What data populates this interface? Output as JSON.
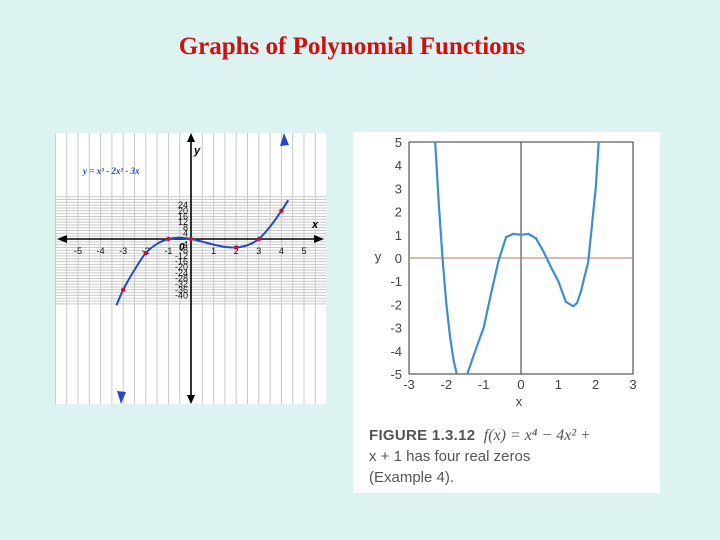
{
  "slide": {
    "title": "Graphs of Polynomial Functions"
  },
  "colors": {
    "title": "#d10f0f",
    "background": "#dcf3f1",
    "left_curve": "#2448c8",
    "left_points": "#c8102e",
    "right_curve": "#3d8fca"
  },
  "chart_data": [
    {
      "type": "line",
      "function_label": "y = x³ - 2x² - 3x",
      "xlabel": "x",
      "ylabel": "y",
      "origin_label": "0",
      "xlim": [
        -5,
        5
      ],
      "ylim": [
        -40,
        24
      ],
      "x_ticks": [
        -5,
        -4,
        -3,
        -2,
        -1,
        1,
        2,
        3,
        4,
        5
      ],
      "y_ticks": [
        24,
        20,
        16,
        12,
        8,
        4,
        -4,
        -8,
        -12,
        -16,
        -20,
        -24,
        -28,
        -32,
        -36,
        -40
      ],
      "x_tick_labels": [
        "-5",
        "-4",
        "-3",
        "-2",
        "-1",
        "1",
        "2",
        "3",
        "4",
        "5"
      ],
      "y_tick_labels": [
        "24",
        "20",
        "16",
        "12",
        "8",
        "4",
        "-4",
        "-8",
        "-12",
        "-16",
        "-20",
        "-24",
        "-28",
        "-32",
        "-36",
        "-40"
      ],
      "grid": true,
      "series": [
        {
          "x": [
            -3.3,
            -3,
            -2.5,
            -2,
            -1.5,
            -1,
            -0.5,
            0,
            0.5,
            1,
            1.5,
            2,
            2.5,
            3,
            3.5,
            4,
            4.3
          ],
          "y": [
            -47.1,
            -36,
            -21.9,
            -10,
            -3.4,
            0,
            0.9,
            0,
            -1.9,
            -4,
            -5.6,
            -6,
            -4.4,
            0,
            8.8,
            20,
            27.5
          ]
        }
      ],
      "marked_points": {
        "x": [
          -3,
          -2,
          -1,
          0,
          2,
          3,
          4
        ],
        "y": [
          -36,
          -10,
          0,
          0,
          -6,
          0,
          20
        ]
      }
    },
    {
      "type": "line",
      "xlabel": "x",
      "ylabel": "y",
      "xlim": [
        -3,
        3
      ],
      "ylim": [
        -5,
        5
      ],
      "x_ticks": [
        -3,
        -2,
        -1,
        0,
        1,
        2,
        3
      ],
      "y_ticks": [
        5,
        4,
        3,
        2,
        1,
        0,
        -1,
        -2,
        -3,
        -4,
        -5
      ],
      "x_tick_labels": [
        "-3",
        "-2",
        "-1",
        "0",
        "1",
        "2",
        "3"
      ],
      "y_tick_labels": [
        "5",
        "4",
        "3",
        "2",
        "1",
        "0",
        "-1",
        "-2",
        "-3",
        "-4",
        "-5"
      ],
      "grid": false,
      "series": [
        {
          "x": [
            -2.3,
            -2.2,
            -2.1,
            -2,
            -1.9,
            -1.8,
            -1.7,
            -1.6,
            -1.5,
            -1.4,
            -1.2,
            -1,
            -0.8,
            -0.6,
            -0.4,
            -0.2,
            0,
            0.2,
            0.4,
            0.6,
            0.8,
            1,
            1.2,
            1.4,
            1.5,
            1.6,
            1.8,
            2,
            2.2
          ],
          "y": [
            5.04,
            2.27,
            -0.06,
            -1.96,
            -3.42,
            -4.46,
            -5.11,
            -5.39,
            -5.31,
            -4.82,
            -3.89,
            -3,
            -1.52,
            -0.11,
            0.9,
            1.04,
            1,
            1.04,
            0.85,
            0.29,
            -0.39,
            -1,
            -1.89,
            -2.08,
            -1.94,
            -1.48,
            -0.17,
            3,
            7.88
          ]
        }
      ],
      "caption": {
        "figure": "FIGURE 1.3.12",
        "line1_math": "f(x) = x⁴ − 4x² +",
        "line2": "x + 1 has four real zeros",
        "line3": "(Example 4)."
      }
    }
  ]
}
